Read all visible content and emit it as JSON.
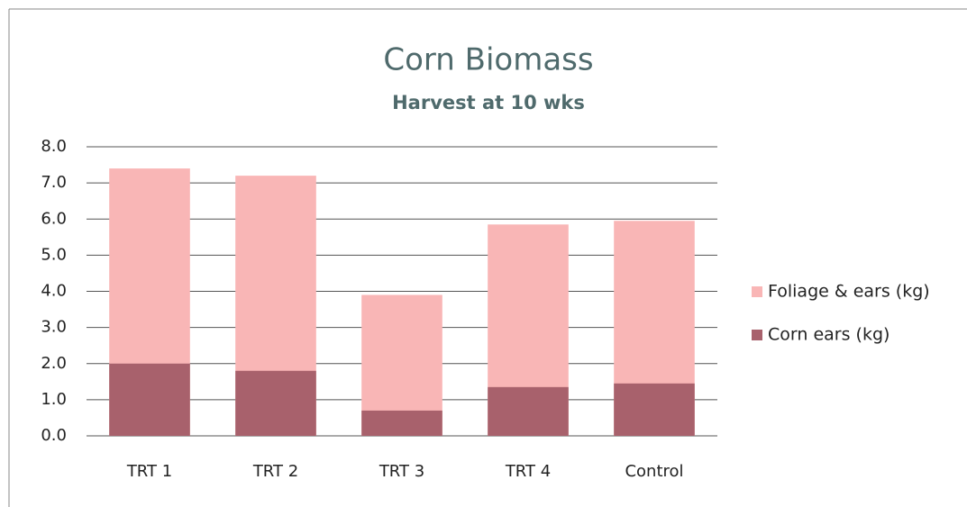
{
  "chart_data": {
    "type": "bar",
    "title": "Corn Biomass",
    "subtitle": "Harvest at 10 wks",
    "categories": [
      "TRT 1",
      "TRT 2",
      "TRT 3",
      "TRT 4",
      "Control"
    ],
    "series": [
      {
        "name": "Foliage & ears (kg)",
        "color": "#f9b6b6",
        "values": [
          7.4,
          7.2,
          3.9,
          5.85,
          5.95
        ]
      },
      {
        "name": "Corn ears (kg)",
        "color": "#a8616c",
        "values": [
          2.0,
          1.8,
          0.7,
          1.35,
          1.45
        ]
      }
    ],
    "ylim": [
      0,
      8
    ],
    "yticks": [
      {
        "value": 0,
        "label": "0.0"
      },
      {
        "value": 1,
        "label": "1.0"
      },
      {
        "value": 2,
        "label": "2.0"
      },
      {
        "value": 3,
        "label": "3.0"
      },
      {
        "value": 4,
        "label": "4.0"
      },
      {
        "value": 5,
        "label": "5.0"
      },
      {
        "value": 6,
        "label": "6.0"
      },
      {
        "value": 7,
        "label": "7.0"
      },
      {
        "value": 8,
        "label": "8.0"
      }
    ],
    "grid": true,
    "legend": "right"
  }
}
